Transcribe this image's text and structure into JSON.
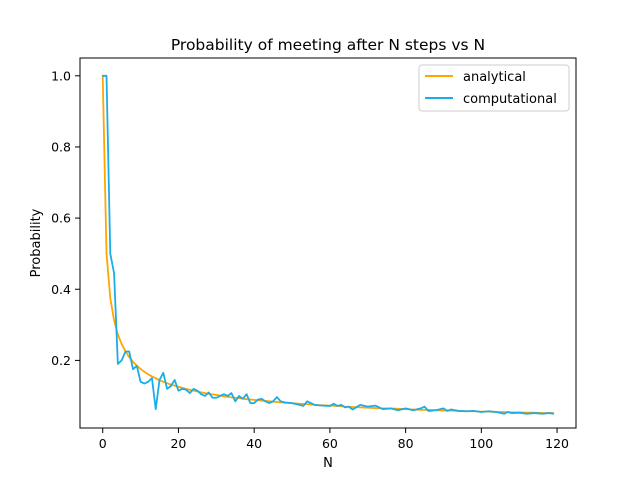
{
  "chart_data": {
    "type": "line",
    "title": "Probability of meeting after N steps vs N",
    "xlabel": "N",
    "ylabel": "Probability",
    "xlim": [
      -6,
      125
    ],
    "ylim": [
      0.01,
      1.05
    ],
    "xticks": [
      0,
      20,
      40,
      60,
      80,
      100,
      120
    ],
    "yticks": [
      0.2,
      0.4,
      0.6,
      0.8,
      1.0
    ],
    "xtick_labels": [
      "0",
      "20",
      "40",
      "60",
      "80",
      "100",
      "120"
    ],
    "ytick_labels": [
      "0.2",
      "0.4",
      "0.6",
      "0.8",
      "1.0"
    ],
    "grid": false,
    "legend_placement": "top-right",
    "series": [
      {
        "name": "analytical",
        "color": "#FFA500",
        "x": [
          0,
          1,
          2,
          3,
          4,
          5,
          6,
          7,
          8,
          9,
          10,
          11,
          12,
          13,
          14,
          15,
          16,
          17,
          18,
          19,
          20,
          22,
          24,
          26,
          28,
          30,
          32,
          34,
          36,
          38,
          40,
          42,
          44,
          46,
          48,
          50,
          52,
          54,
          56,
          58,
          60,
          62,
          64,
          66,
          68,
          70,
          72,
          74,
          76,
          78,
          80,
          82,
          84,
          86,
          88,
          90,
          92,
          94,
          96,
          98,
          100,
          102,
          104,
          106,
          108,
          110,
          112,
          114,
          116,
          118,
          119
        ],
        "values": [
          1.0,
          0.5,
          0.375,
          0.3125,
          0.273,
          0.246,
          0.226,
          0.209,
          0.196,
          0.185,
          0.176,
          0.168,
          0.161,
          0.155,
          0.15,
          0.144,
          0.14,
          0.136,
          0.132,
          0.129,
          0.126,
          0.12,
          0.115,
          0.11,
          0.106,
          0.103,
          0.099,
          0.096,
          0.094,
          0.091,
          0.089,
          0.087,
          0.085,
          0.083,
          0.081,
          0.08,
          0.078,
          0.077,
          0.075,
          0.074,
          0.073,
          0.072,
          0.07,
          0.069,
          0.068,
          0.067,
          0.066,
          0.065,
          0.065,
          0.064,
          0.063,
          0.062,
          0.061,
          0.061,
          0.06,
          0.059,
          0.059,
          0.058,
          0.057,
          0.057,
          0.056,
          0.056,
          0.055,
          0.055,
          0.054,
          0.054,
          0.053,
          0.053,
          0.052,
          0.052,
          0.052
        ]
      },
      {
        "name": "computational",
        "color": "#1AADE8",
        "x": [
          0,
          1,
          2,
          3,
          4,
          5,
          6,
          7,
          8,
          9,
          10,
          11,
          12,
          13,
          14,
          15,
          16,
          17,
          18,
          19,
          20,
          21,
          22,
          23,
          24,
          25,
          26,
          27,
          28,
          29,
          30,
          31,
          32,
          33,
          34,
          35,
          36,
          37,
          38,
          39,
          40,
          41,
          42,
          43,
          44,
          45,
          46,
          47,
          48,
          50,
          52,
          53,
          54,
          56,
          58,
          60,
          61,
          62,
          63,
          64,
          65,
          66,
          68,
          70,
          72,
          74,
          76,
          78,
          80,
          82,
          84,
          85,
          86,
          88,
          90,
          91,
          92,
          94,
          96,
          98,
          100,
          102,
          104,
          106,
          107,
          108,
          110,
          112,
          114,
          116,
          118,
          119
        ],
        "values": [
          1.0,
          1.0,
          0.5,
          0.445,
          0.19,
          0.2,
          0.225,
          0.225,
          0.175,
          0.185,
          0.14,
          0.135,
          0.14,
          0.15,
          0.063,
          0.145,
          0.165,
          0.12,
          0.128,
          0.145,
          0.115,
          0.12,
          0.118,
          0.108,
          0.12,
          0.115,
          0.105,
          0.1,
          0.11,
          0.095,
          0.095,
          0.1,
          0.105,
          0.1,
          0.108,
          0.085,
          0.1,
          0.092,
          0.105,
          0.08,
          0.08,
          0.09,
          0.092,
          0.085,
          0.08,
          0.085,
          0.097,
          0.085,
          0.082,
          0.08,
          0.075,
          0.072,
          0.085,
          0.075,
          0.073,
          0.072,
          0.078,
          0.072,
          0.075,
          0.068,
          0.07,
          0.062,
          0.075,
          0.07,
          0.073,
          0.063,
          0.065,
          0.06,
          0.065,
          0.06,
          0.065,
          0.07,
          0.058,
          0.06,
          0.065,
          0.058,
          0.062,
          0.058,
          0.057,
          0.058,
          0.055,
          0.057,
          0.055,
          0.05,
          0.055,
          0.052,
          0.053,
          0.05,
          0.052,
          0.05,
          0.052,
          0.05
        ]
      }
    ]
  }
}
